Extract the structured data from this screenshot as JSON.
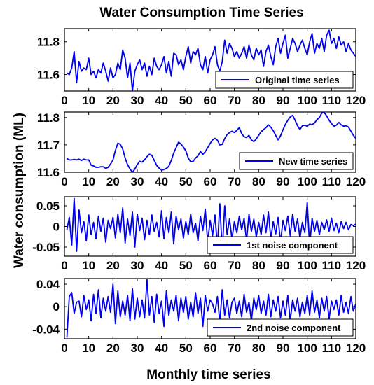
{
  "figure_title": "Water Consumption Time Series",
  "xlabel": "Monthly time series",
  "ylabel": "Water consumption (ML)",
  "line_color": "#0000ee",
  "chart_data": [
    {
      "type": "line",
      "name": "Original time series",
      "xlim": [
        0,
        120
      ],
      "ylim": [
        11.5,
        11.88
      ],
      "xticks": [
        0,
        10,
        20,
        30,
        40,
        50,
        60,
        70,
        80,
        90,
        100,
        110,
        120
      ],
      "yticks": [
        11.6,
        11.8
      ],
      "ytick_labels": [
        "11.6",
        "11.8"
      ],
      "legend_position": "bottom-right",
      "x_start": 1,
      "y": [
        11.61,
        11.6,
        11.64,
        11.74,
        11.55,
        11.68,
        11.62,
        11.64,
        11.63,
        11.7,
        11.6,
        11.62,
        11.58,
        11.63,
        11.61,
        11.67,
        11.62,
        11.56,
        11.64,
        11.58,
        11.6,
        11.67,
        11.63,
        11.75,
        11.7,
        11.58,
        11.67,
        11.5,
        11.62,
        11.66,
        11.69,
        11.63,
        11.67,
        11.59,
        11.65,
        11.6,
        11.7,
        11.65,
        11.63,
        11.66,
        11.71,
        11.61,
        11.68,
        11.59,
        11.73,
        11.72,
        11.66,
        11.69,
        11.63,
        11.71,
        11.77,
        11.67,
        11.74,
        11.72,
        11.76,
        11.66,
        11.63,
        11.71,
        11.61,
        11.69,
        11.72,
        11.77,
        11.66,
        11.62,
        11.68,
        11.81,
        11.73,
        11.79,
        11.76,
        11.71,
        11.74,
        11.7,
        11.73,
        11.77,
        11.7,
        11.78,
        11.72,
        11.69,
        11.76,
        11.72,
        11.75,
        11.65,
        11.74,
        11.78,
        11.71,
        11.66,
        11.77,
        11.82,
        11.73,
        11.79,
        11.84,
        11.7,
        11.76,
        11.82,
        11.79,
        11.74,
        11.78,
        11.81,
        11.76,
        11.72,
        11.8,
        11.85,
        11.73,
        11.79,
        11.76,
        11.82,
        11.74,
        11.84,
        11.87,
        11.79,
        11.82,
        11.76,
        11.83,
        11.78,
        11.8,
        11.74,
        11.79,
        11.75,
        11.73,
        11.71
      ]
    },
    {
      "type": "line",
      "name": "New time series",
      "xlim": [
        0,
        120
      ],
      "ylim": [
        11.6,
        11.82
      ],
      "xticks": [
        0,
        10,
        20,
        30,
        40,
        50,
        60,
        70,
        80,
        90,
        100,
        110,
        120
      ],
      "yticks": [
        11.6,
        11.7,
        11.8
      ],
      "ytick_labels": [
        "11.6",
        "11.7",
        "11.8"
      ],
      "legend_position": "bottom-right",
      "x_start": 1,
      "y": [
        11.65,
        11.645,
        11.645,
        11.647,
        11.645,
        11.648,
        11.643,
        11.648,
        11.645,
        11.645,
        11.626,
        11.623,
        11.618,
        11.618,
        11.62,
        11.62,
        11.614,
        11.618,
        11.63,
        11.645,
        11.68,
        11.706,
        11.702,
        11.685,
        11.652,
        11.628,
        11.612,
        11.6,
        11.612,
        11.628,
        11.64,
        11.637,
        11.646,
        11.657,
        11.666,
        11.662,
        11.643,
        11.625,
        11.615,
        11.608,
        11.61,
        11.614,
        11.622,
        11.643,
        11.67,
        11.69,
        11.71,
        11.703,
        11.692,
        11.678,
        11.652,
        11.638,
        11.64,
        11.652,
        11.66,
        11.676,
        11.665,
        11.675,
        11.69,
        11.705,
        11.718,
        11.724,
        11.717,
        11.7,
        11.702,
        11.723,
        11.738,
        11.745,
        11.75,
        11.745,
        11.753,
        11.763,
        11.741,
        11.73,
        11.727,
        11.735,
        11.718,
        11.712,
        11.722,
        11.735,
        11.748,
        11.756,
        11.763,
        11.773,
        11.765,
        11.752,
        11.735,
        11.718,
        11.733,
        11.755,
        11.775,
        11.79,
        11.802,
        11.808,
        11.79,
        11.77,
        11.756,
        11.77,
        11.772,
        11.768,
        11.776,
        11.774,
        11.78,
        11.792,
        11.8,
        11.816,
        11.818,
        11.806,
        11.79,
        11.778,
        11.768,
        11.772,
        11.782,
        11.773,
        11.768,
        11.77,
        11.765,
        11.75,
        11.735,
        11.724
      ]
    },
    {
      "type": "line",
      "name": "1st noise component",
      "xlim": [
        0,
        120
      ],
      "ylim": [
        -0.072,
        0.072
      ],
      "xticks": [
        0,
        10,
        20,
        30,
        40,
        50,
        60,
        70,
        80,
        90,
        100,
        110,
        120
      ],
      "yticks": [
        -0.05,
        0,
        0.05
      ],
      "ytick_labels": [
        "-0.05",
        "0",
        "0.05"
      ],
      "legend_position": "bottom-right",
      "x_start": 1,
      "y": [
        -0.008,
        0.022,
        -0.045,
        0.068,
        -0.06,
        0.04,
        -0.015,
        0.012,
        -0.035,
        0.028,
        -0.02,
        0.01,
        -0.03,
        0.025,
        -0.012,
        0.02,
        -0.038,
        0.015,
        -0.005,
        0.022,
        -0.028,
        0.03,
        -0.015,
        0.045,
        -0.04,
        0.018,
        -0.022,
        0.035,
        -0.05,
        0.03,
        -0.01,
        0.02,
        -0.032,
        0.015,
        -0.02,
        0.028,
        -0.012,
        0.01,
        -0.025,
        0.038,
        -0.03,
        0.022,
        -0.015,
        0.035,
        -0.042,
        0.025,
        -0.008,
        0.018,
        -0.028,
        0.012,
        -0.02,
        0.03,
        -0.015,
        0.008,
        -0.035,
        0.025,
        -0.01,
        0.042,
        -0.038,
        0.015,
        -0.022,
        0.028,
        -0.05,
        0.055,
        -0.06,
        0.05,
        -0.02,
        0.018,
        -0.03,
        0.012,
        -0.015,
        0.025,
        -0.008,
        0.02,
        -0.035,
        0.03,
        -0.012,
        0.018,
        -0.025,
        0.01,
        -0.02,
        0.028,
        -0.015,
        0.035,
        -0.03,
        0.012,
        -0.018,
        0.022,
        -0.04,
        0.015,
        -0.01,
        0.025,
        -0.022,
        0.03,
        -0.012,
        0.018,
        -0.028,
        0.01,
        -0.015,
        0.058,
        -0.048,
        0.02,
        -0.012,
        0.015,
        -0.02,
        0.01,
        -0.008,
        0.016,
        -0.012,
        0.02,
        -0.01,
        0.008,
        -0.015,
        0.012,
        -0.005,
        0.01,
        -0.008,
        0.005,
        0.002,
        0.006
      ]
    },
    {
      "type": "line",
      "name": "2nd noise component",
      "xlim": [
        0,
        120
      ],
      "ylim": [
        -0.057,
        0.05
      ],
      "xticks": [
        0,
        10,
        20,
        30,
        40,
        50,
        60,
        70,
        80,
        90,
        100,
        110,
        120
      ],
      "yticks": [
        -0.04,
        0,
        0.04
      ],
      "ytick_labels": [
        "-0.04",
        "0",
        "0.04"
      ],
      "legend_position": "bottom-right",
      "x_start": 1,
      "y": [
        -0.055,
        0.018,
        0.025,
        -0.012,
        0.008,
        0.01,
        -0.018,
        0.02,
        -0.005,
        0.012,
        -0.025,
        0.022,
        -0.012,
        0.03,
        -0.02,
        0.015,
        -0.008,
        0.018,
        -0.01,
        0.04,
        -0.03,
        0.028,
        -0.018,
        0.01,
        -0.015,
        0.02,
        -0.025,
        0.032,
        -0.022,
        0.015,
        -0.018,
        0.012,
        -0.02,
        0.048,
        -0.015,
        0.018,
        -0.028,
        0.022,
        -0.012,
        0.01,
        -0.035,
        0.028,
        -0.015,
        0.012,
        -0.008,
        0.02,
        -0.025,
        0.015,
        -0.01,
        0.018,
        -0.022,
        0.008,
        -0.018,
        0.025,
        -0.012,
        0.015,
        -0.035,
        0.02,
        -0.008,
        0.012,
        0.005,
        -0.01,
        0.018,
        -0.028,
        0.03,
        -0.015,
        0.012,
        -0.02,
        0.008,
        0.015,
        -0.012,
        0.01,
        -0.018,
        0.022,
        -0.01,
        0.008,
        -0.025,
        0.015,
        -0.005,
        0.02,
        -0.012,
        0.01,
        -0.015,
        0.022,
        -0.018,
        0.012,
        -0.008,
        0.018,
        -0.02,
        0.01,
        -0.015,
        0.02,
        -0.025,
        0.012,
        -0.008,
        0.015,
        -0.018,
        0.008,
        -0.012,
        0.02,
        -0.015,
        0.028,
        -0.01,
        0.012,
        -0.02,
        0.015,
        -0.008,
        0.018,
        -0.022,
        0.01,
        -0.005,
        0.012,
        -0.015,
        0.02,
        -0.01,
        0.008,
        -0.012,
        0.018,
        -0.008,
        0.005
      ]
    }
  ]
}
